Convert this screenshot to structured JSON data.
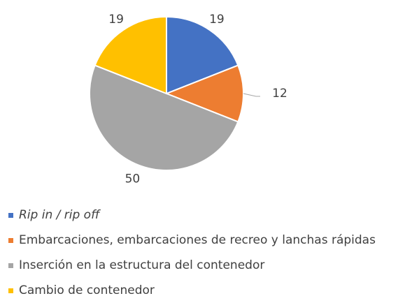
{
  "chart_data": {
    "type": "pie",
    "categories": [
      "Rip in / rip off",
      "Embarcaciones, embarcaciones de recreo y lanchas rápidas",
      "Inserción en la estructura del contenedor",
      "Cambio de contenedor"
    ],
    "values": [
      19,
      12,
      50,
      19
    ],
    "colors": [
      "#4472C4",
      "#ED7D31",
      "#A5A5A5",
      "#FFC000"
    ],
    "data_labels": [
      "19",
      "12",
      "50",
      "19"
    ],
    "label_styles": [
      "italic",
      "normal",
      "normal",
      "normal"
    ],
    "start_angle_deg": 0,
    "direction": "clockwise",
    "legend_position": "bottom",
    "title": ""
  }
}
